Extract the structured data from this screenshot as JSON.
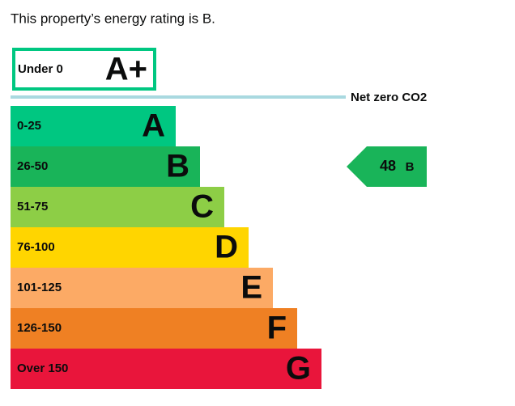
{
  "intro": "This property’s energy rating is B.",
  "top_band": {
    "range": "Under 0",
    "letter": "A+",
    "color": "#00c781"
  },
  "net_zero": "Net zero CO2",
  "bands": [
    {
      "range": "0-25",
      "letter": "A",
      "color": "#00c781"
    },
    {
      "range": "26-50",
      "letter": "B",
      "color": "#19b459"
    },
    {
      "range": "51-75",
      "letter": "C",
      "color": "#8dce46"
    },
    {
      "range": "76-100",
      "letter": "D",
      "color": "#ffd500"
    },
    {
      "range": "101-125",
      "letter": "E",
      "color": "#fcaa65"
    },
    {
      "range": "126-150",
      "letter": "F",
      "color": "#ef8023"
    },
    {
      "range": "Over 150",
      "letter": "G",
      "color": "#e9153b"
    }
  ],
  "current": {
    "score": 48,
    "letter": "B",
    "color": "#19b459"
  }
}
